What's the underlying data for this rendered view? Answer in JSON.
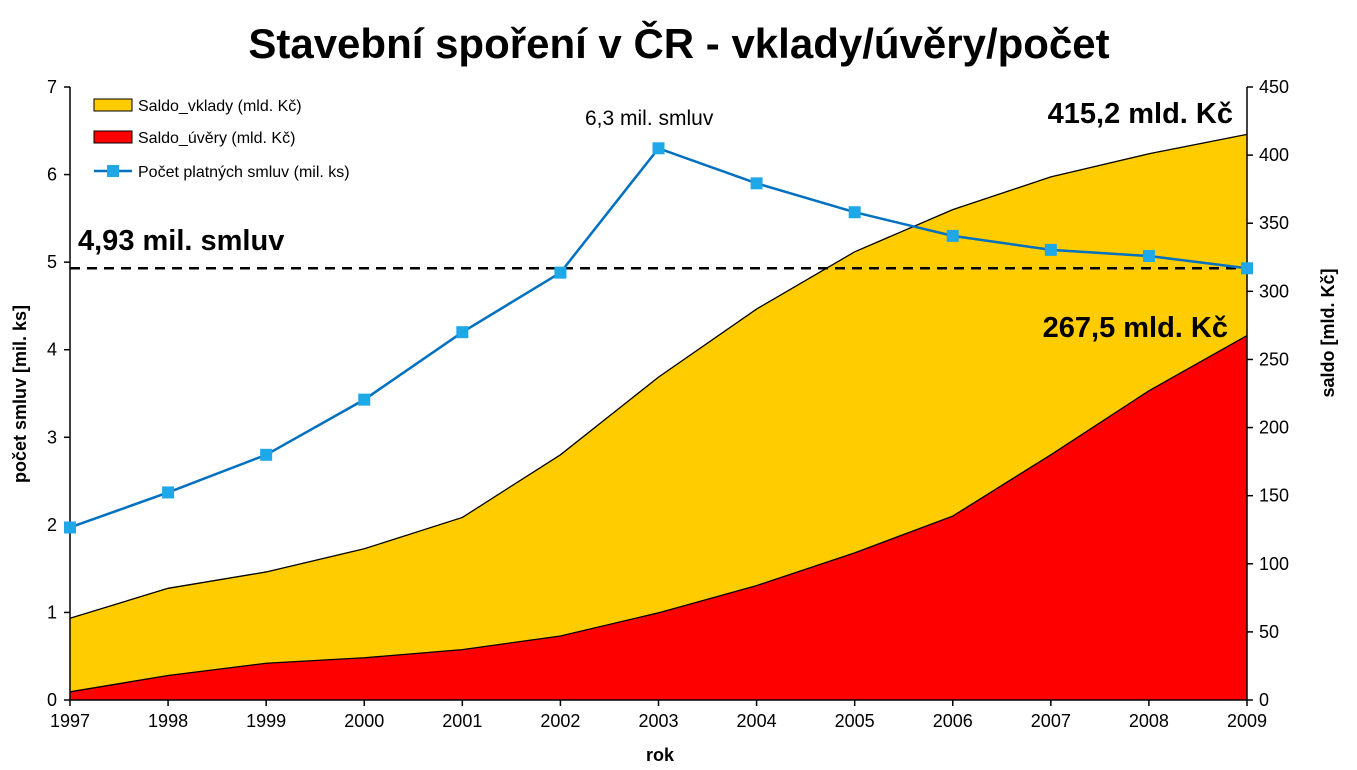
{
  "chart_data": {
    "type": "area",
    "title": "Stavební spoření v ČR - vklady/úvěry/počet",
    "xlabel": "rok",
    "ylabel_left": "počet smluv [mil. ks]",
    "ylabel_right": "saldo [mld. Kč]",
    "categories": [
      "1997",
      "1998",
      "1999",
      "2000",
      "2001",
      "2002",
      "2003",
      "2004",
      "2005",
      "2006",
      "2007",
      "2008",
      "2009"
    ],
    "y_left": {
      "min": 0,
      "max": 7,
      "ticks": [
        "0",
        "1",
        "2",
        "3",
        "4",
        "5",
        "6",
        "7"
      ]
    },
    "y_right": {
      "min": 0,
      "max": 450,
      "ticks": [
        "0",
        "50",
        "100",
        "150",
        "200",
        "250",
        "300",
        "350",
        "400",
        "450"
      ]
    },
    "grid": false,
    "legend_position": "top-left",
    "series": [
      {
        "name": "Saldo_vklady (mld. Kč)",
        "type": "area",
        "axis": "right",
        "color": "#FFCC00",
        "values": [
          60,
          82,
          94,
          111,
          134,
          180,
          237,
          287,
          329,
          360,
          384,
          401,
          415.2
        ]
      },
      {
        "name": "Saldo_úvěry (mld. Kč)",
        "type": "area",
        "axis": "right",
        "color": "#FF0000",
        "values": [
          6,
          18,
          27,
          31,
          37,
          47,
          64,
          84,
          108,
          135,
          180,
          227,
          267.5
        ]
      },
      {
        "name": "Počet platných smluv (mil. ks)",
        "type": "line",
        "axis": "left",
        "color": "#0070C0",
        "marker_color": "#1EA8E8",
        "values": [
          1.97,
          2.37,
          2.8,
          3.43,
          4.2,
          4.88,
          6.3,
          5.9,
          5.57,
          5.3,
          5.14,
          5.07,
          4.93
        ]
      }
    ],
    "reference_line": {
      "axis": "left",
      "value": 4.93,
      "style": "dashed"
    },
    "annotations": {
      "contracts_2009": "4,93 mil. smluv",
      "contracts_peak": "6,3 mil. smluv",
      "deposits_2009": "415,2 mld. Kč",
      "loans_2009": "267,5 mld. Kč"
    }
  }
}
